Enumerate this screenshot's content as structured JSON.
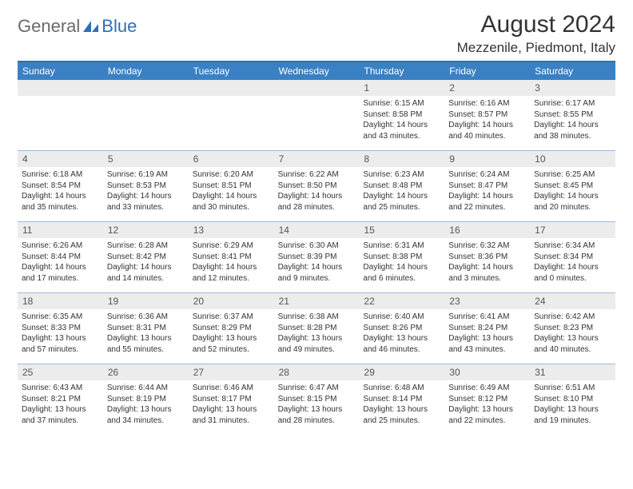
{
  "logo": {
    "general": "General",
    "blue": "Blue"
  },
  "title": {
    "month": "August 2024",
    "location": "Mezzenile, Piedmont, Italy"
  },
  "colors": {
    "header_bg": "#3a80c4",
    "header_border": "#2f6fb5",
    "week_divider": "#9db9d6",
    "daynum_bg": "#ececec",
    "logo_gray": "#6a6a6a",
    "logo_blue": "#2f6fb5",
    "text": "#333333"
  },
  "day_names": [
    "Sunday",
    "Monday",
    "Tuesday",
    "Wednesday",
    "Thursday",
    "Friday",
    "Saturday"
  ],
  "weeks": [
    [
      {
        "day": "",
        "sunrise": "",
        "sunset": "",
        "daylight": ""
      },
      {
        "day": "",
        "sunrise": "",
        "sunset": "",
        "daylight": ""
      },
      {
        "day": "",
        "sunrise": "",
        "sunset": "",
        "daylight": ""
      },
      {
        "day": "",
        "sunrise": "",
        "sunset": "",
        "daylight": ""
      },
      {
        "day": "1",
        "sunrise": "Sunrise: 6:15 AM",
        "sunset": "Sunset: 8:58 PM",
        "daylight": "Daylight: 14 hours and 43 minutes."
      },
      {
        "day": "2",
        "sunrise": "Sunrise: 6:16 AM",
        "sunset": "Sunset: 8:57 PM",
        "daylight": "Daylight: 14 hours and 40 minutes."
      },
      {
        "day": "3",
        "sunrise": "Sunrise: 6:17 AM",
        "sunset": "Sunset: 8:55 PM",
        "daylight": "Daylight: 14 hours and 38 minutes."
      }
    ],
    [
      {
        "day": "4",
        "sunrise": "Sunrise: 6:18 AM",
        "sunset": "Sunset: 8:54 PM",
        "daylight": "Daylight: 14 hours and 35 minutes."
      },
      {
        "day": "5",
        "sunrise": "Sunrise: 6:19 AM",
        "sunset": "Sunset: 8:53 PM",
        "daylight": "Daylight: 14 hours and 33 minutes."
      },
      {
        "day": "6",
        "sunrise": "Sunrise: 6:20 AM",
        "sunset": "Sunset: 8:51 PM",
        "daylight": "Daylight: 14 hours and 30 minutes."
      },
      {
        "day": "7",
        "sunrise": "Sunrise: 6:22 AM",
        "sunset": "Sunset: 8:50 PM",
        "daylight": "Daylight: 14 hours and 28 minutes."
      },
      {
        "day": "8",
        "sunrise": "Sunrise: 6:23 AM",
        "sunset": "Sunset: 8:48 PM",
        "daylight": "Daylight: 14 hours and 25 minutes."
      },
      {
        "day": "9",
        "sunrise": "Sunrise: 6:24 AM",
        "sunset": "Sunset: 8:47 PM",
        "daylight": "Daylight: 14 hours and 22 minutes."
      },
      {
        "day": "10",
        "sunrise": "Sunrise: 6:25 AM",
        "sunset": "Sunset: 8:45 PM",
        "daylight": "Daylight: 14 hours and 20 minutes."
      }
    ],
    [
      {
        "day": "11",
        "sunrise": "Sunrise: 6:26 AM",
        "sunset": "Sunset: 8:44 PM",
        "daylight": "Daylight: 14 hours and 17 minutes."
      },
      {
        "day": "12",
        "sunrise": "Sunrise: 6:28 AM",
        "sunset": "Sunset: 8:42 PM",
        "daylight": "Daylight: 14 hours and 14 minutes."
      },
      {
        "day": "13",
        "sunrise": "Sunrise: 6:29 AM",
        "sunset": "Sunset: 8:41 PM",
        "daylight": "Daylight: 14 hours and 12 minutes."
      },
      {
        "day": "14",
        "sunrise": "Sunrise: 6:30 AM",
        "sunset": "Sunset: 8:39 PM",
        "daylight": "Daylight: 14 hours and 9 minutes."
      },
      {
        "day": "15",
        "sunrise": "Sunrise: 6:31 AM",
        "sunset": "Sunset: 8:38 PM",
        "daylight": "Daylight: 14 hours and 6 minutes."
      },
      {
        "day": "16",
        "sunrise": "Sunrise: 6:32 AM",
        "sunset": "Sunset: 8:36 PM",
        "daylight": "Daylight: 14 hours and 3 minutes."
      },
      {
        "day": "17",
        "sunrise": "Sunrise: 6:34 AM",
        "sunset": "Sunset: 8:34 PM",
        "daylight": "Daylight: 14 hours and 0 minutes."
      }
    ],
    [
      {
        "day": "18",
        "sunrise": "Sunrise: 6:35 AM",
        "sunset": "Sunset: 8:33 PM",
        "daylight": "Daylight: 13 hours and 57 minutes."
      },
      {
        "day": "19",
        "sunrise": "Sunrise: 6:36 AM",
        "sunset": "Sunset: 8:31 PM",
        "daylight": "Daylight: 13 hours and 55 minutes."
      },
      {
        "day": "20",
        "sunrise": "Sunrise: 6:37 AM",
        "sunset": "Sunset: 8:29 PM",
        "daylight": "Daylight: 13 hours and 52 minutes."
      },
      {
        "day": "21",
        "sunrise": "Sunrise: 6:38 AM",
        "sunset": "Sunset: 8:28 PM",
        "daylight": "Daylight: 13 hours and 49 minutes."
      },
      {
        "day": "22",
        "sunrise": "Sunrise: 6:40 AM",
        "sunset": "Sunset: 8:26 PM",
        "daylight": "Daylight: 13 hours and 46 minutes."
      },
      {
        "day": "23",
        "sunrise": "Sunrise: 6:41 AM",
        "sunset": "Sunset: 8:24 PM",
        "daylight": "Daylight: 13 hours and 43 minutes."
      },
      {
        "day": "24",
        "sunrise": "Sunrise: 6:42 AM",
        "sunset": "Sunset: 8:23 PM",
        "daylight": "Daylight: 13 hours and 40 minutes."
      }
    ],
    [
      {
        "day": "25",
        "sunrise": "Sunrise: 6:43 AM",
        "sunset": "Sunset: 8:21 PM",
        "daylight": "Daylight: 13 hours and 37 minutes."
      },
      {
        "day": "26",
        "sunrise": "Sunrise: 6:44 AM",
        "sunset": "Sunset: 8:19 PM",
        "daylight": "Daylight: 13 hours and 34 minutes."
      },
      {
        "day": "27",
        "sunrise": "Sunrise: 6:46 AM",
        "sunset": "Sunset: 8:17 PM",
        "daylight": "Daylight: 13 hours and 31 minutes."
      },
      {
        "day": "28",
        "sunrise": "Sunrise: 6:47 AM",
        "sunset": "Sunset: 8:15 PM",
        "daylight": "Daylight: 13 hours and 28 minutes."
      },
      {
        "day": "29",
        "sunrise": "Sunrise: 6:48 AM",
        "sunset": "Sunset: 8:14 PM",
        "daylight": "Daylight: 13 hours and 25 minutes."
      },
      {
        "day": "30",
        "sunrise": "Sunrise: 6:49 AM",
        "sunset": "Sunset: 8:12 PM",
        "daylight": "Daylight: 13 hours and 22 minutes."
      },
      {
        "day": "31",
        "sunrise": "Sunrise: 6:51 AM",
        "sunset": "Sunset: 8:10 PM",
        "daylight": "Daylight: 13 hours and 19 minutes."
      }
    ]
  ]
}
